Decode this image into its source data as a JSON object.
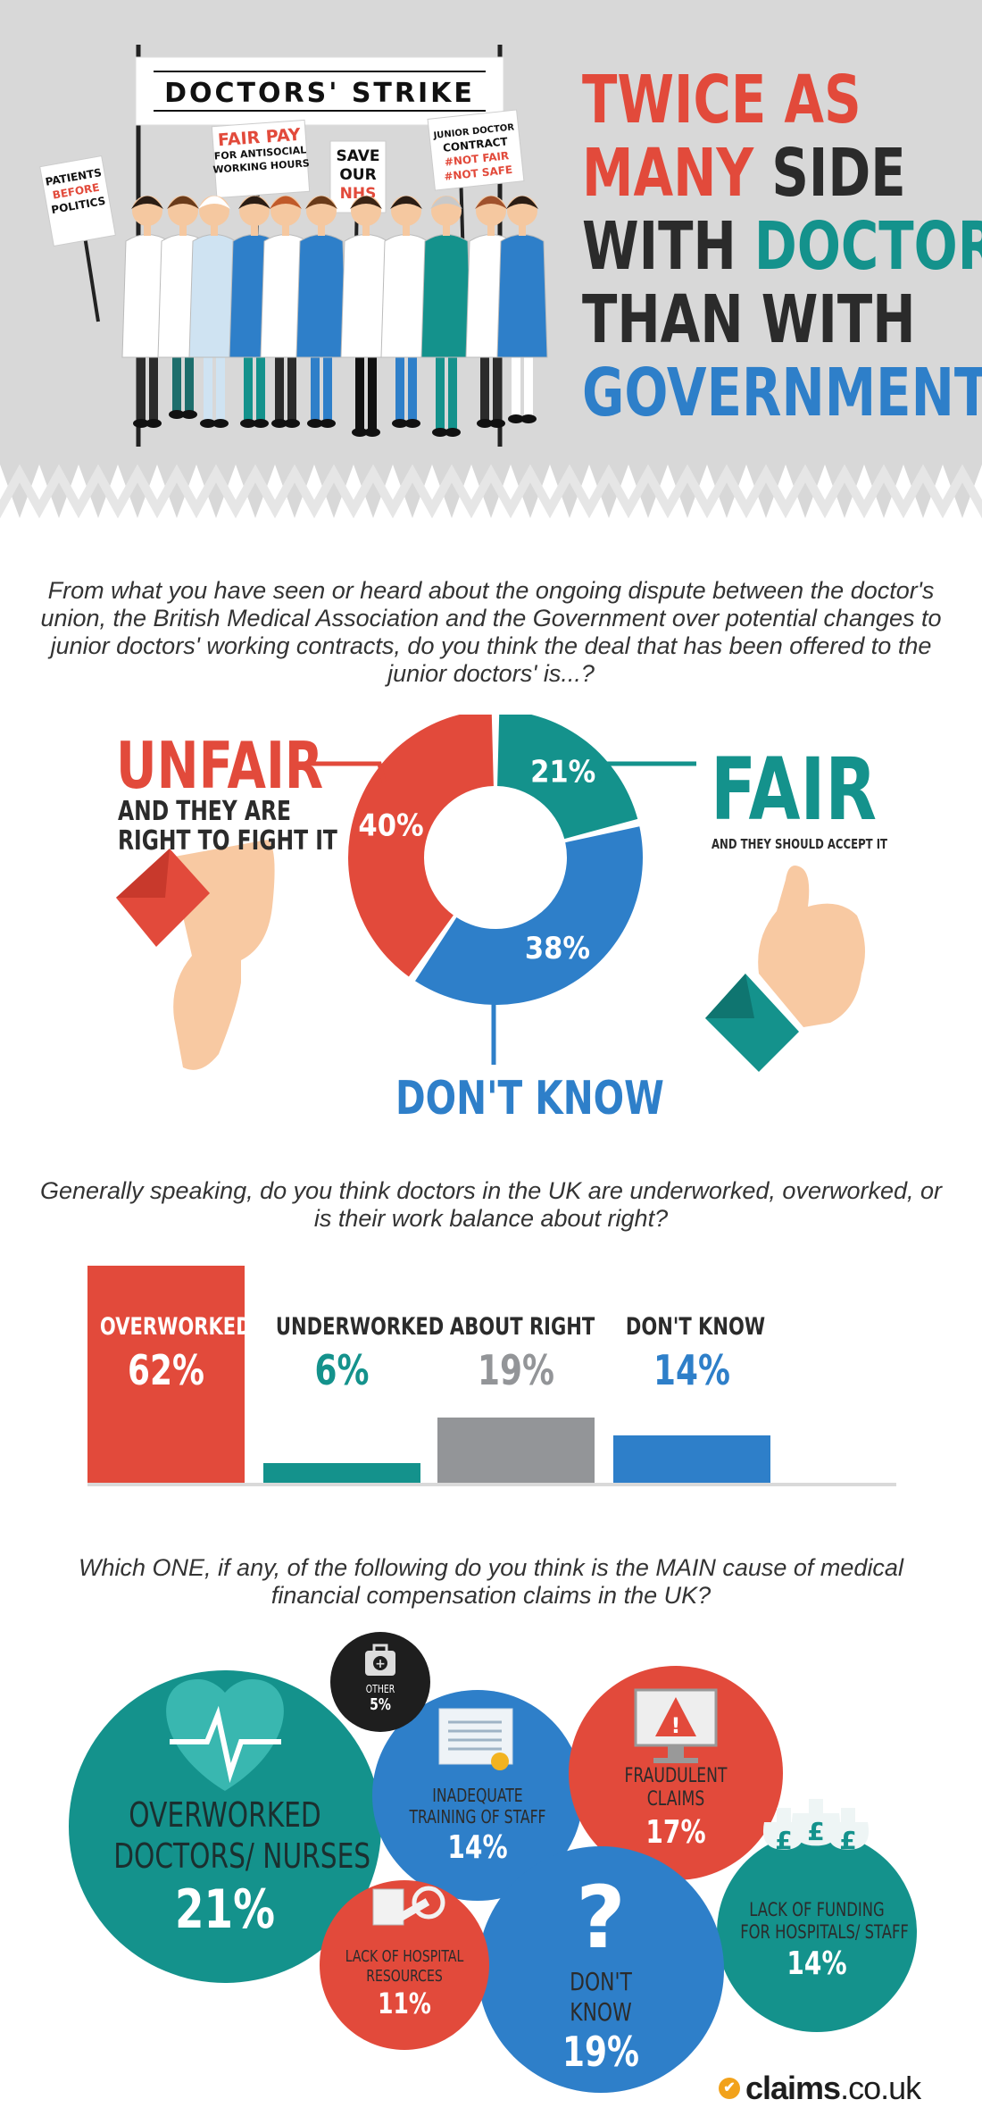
{
  "header": {
    "banner": "DOCTORS' STRIKE",
    "signs": {
      "patients": [
        "PATIENTS",
        "BEFORE",
        "POLITICS"
      ],
      "fairpay": [
        "FAIR PAY",
        "FOR ANTISOCIAL",
        "WORKING HOURS"
      ],
      "savenhs": [
        "SAVE",
        "OUR",
        "NHS"
      ],
      "contract": [
        "JUNIOR DOCTOR",
        "CONTRACT",
        "#NOT FAIR",
        "#NOT SAFE"
      ]
    },
    "headline": [
      [
        {
          "t": "TWICE AS",
          "c": "red"
        }
      ],
      [
        {
          "t": "MANY ",
          "c": "red"
        },
        {
          "t": "SIDE",
          "c": "dark"
        }
      ],
      [
        {
          "t": "WITH ",
          "c": "dark"
        },
        {
          "t": "DOCTORS",
          "c": "teal"
        }
      ],
      [
        {
          "t": "THAN WITH",
          "c": "dark"
        }
      ],
      [
        {
          "t": "GOVERNMENT",
          "c": "blue"
        }
      ]
    ]
  },
  "colors": {
    "red": "#e24a3b",
    "teal": "#14928c",
    "blue": "#2e7fc9",
    "grey": "#939598",
    "dark": "#2b2b2b"
  },
  "q1": {
    "text": "From what you have seen or heard about the ongoing dispute between the doctor's union, the British Medical Association and the Government over potential changes to junior doctors' working contracts, do you think the deal that has been offered to the junior doctors' is...?",
    "unfair_title": "UNFAIR",
    "unfair_sub": [
      "AND THEY ARE",
      "RIGHT TO FIGHT IT"
    ],
    "fair_title": "FAIR",
    "fair_sub": "AND THEY SHOULD ACCEPT IT",
    "dontknow_label": "DON'T KNOW"
  },
  "q2": {
    "text": "Generally speaking, do you think doctors in the UK are underworked, overworked, or is their work balance about right?"
  },
  "q3": {
    "text": "Which ONE, if any, of the following do you think is the MAIN cause of medical financial compensation claims in the UK?"
  },
  "brand": {
    "word": "claims",
    "tld": ".co.uk"
  },
  "chart_data": [
    {
      "type": "pie",
      "categories": [
        "UNFAIR",
        "FAIR",
        "DON'T KNOW"
      ],
      "values": [
        40,
        21,
        38
      ],
      "labels": [
        "40%",
        "21%",
        "38%"
      ],
      "colors": [
        "#e24a3b",
        "#14928c",
        "#2e7fc9"
      ]
    },
    {
      "type": "bar",
      "categories": [
        "OVERWORKED",
        "UNDERWORKED",
        "ABOUT RIGHT",
        "DON'T KNOW"
      ],
      "values": [
        62,
        6,
        19,
        14
      ],
      "labels": [
        "62%",
        "6%",
        "19%",
        "14%"
      ],
      "colors": [
        "#e24a3b",
        "#14928c",
        "#939598",
        "#2e7fc9"
      ],
      "ylim": [
        0,
        62
      ]
    },
    {
      "type": "bubble",
      "categories": [
        "OVERWORKED DOCTORS/ NURSES",
        "INADEQUATE TRAINING OF STAFF",
        "FRAUDULENT CLAIMS",
        "LACK OF FUNDING FOR HOSPITALS/ STAFF",
        "DON'T KNOW",
        "LACK OF HOSPITAL RESOURCES",
        "OTHER"
      ],
      "values": [
        21,
        14,
        17,
        14,
        19,
        11,
        5
      ],
      "labels": [
        "21%",
        "14%",
        "17%",
        "14%",
        "19%",
        "11%",
        "5%"
      ],
      "colors": [
        "#14928c",
        "#2e7fc9",
        "#e24a3b",
        "#14928c",
        "#2e7fc9",
        "#e24a3b",
        "#1e1e1e"
      ],
      "icons": [
        "heartbeat-icon",
        "certificate-icon",
        "warning-monitor-icon",
        "money-bags-icon",
        "question-mark-icon",
        "medical-equipment-icon",
        "first-aid-kit-icon"
      ],
      "label_lines": [
        [
          "OVERWORKED",
          "DOCTORS/ NURSES"
        ],
        [
          "INADEQUATE",
          "TRAINING OF STAFF"
        ],
        [
          "FRAUDULENT",
          "CLAIMS"
        ],
        [
          "LACK OF FUNDING",
          "FOR HOSPITALS/ STAFF"
        ],
        [
          "DON'T",
          "KNOW"
        ],
        [
          "LACK OF HOSPITAL",
          "RESOURCES"
        ],
        [
          "OTHER"
        ]
      ]
    }
  ]
}
